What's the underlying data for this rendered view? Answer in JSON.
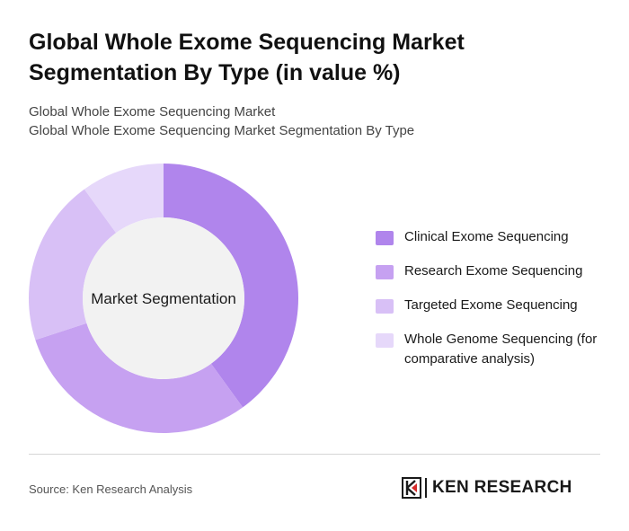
{
  "title": "Global Whole Exome Sequencing Market Segmentation By Type (in value %)",
  "subtitle": {
    "line1": "Global Whole Exome Sequencing Market",
    "line2": "Global Whole Exome Sequencing Market Segmentation By Type"
  },
  "chart_data": {
    "type": "pie",
    "center_label": "Market Segmentation",
    "categories": [
      "Clinical Exome Sequencing",
      "Research Exome Sequencing",
      "Targeted Exome Sequencing",
      "Whole Genome Sequencing (for comparative analysis)"
    ],
    "values": [
      40,
      30,
      20,
      10
    ],
    "colors": [
      "#b085ec",
      "#c6a1f1",
      "#d8c0f6",
      "#e6d8fa"
    ],
    "legend_position": "right"
  },
  "footer": {
    "source": "Source: Ken Research Analysis",
    "logo_text": "KEN RESEARCH"
  }
}
